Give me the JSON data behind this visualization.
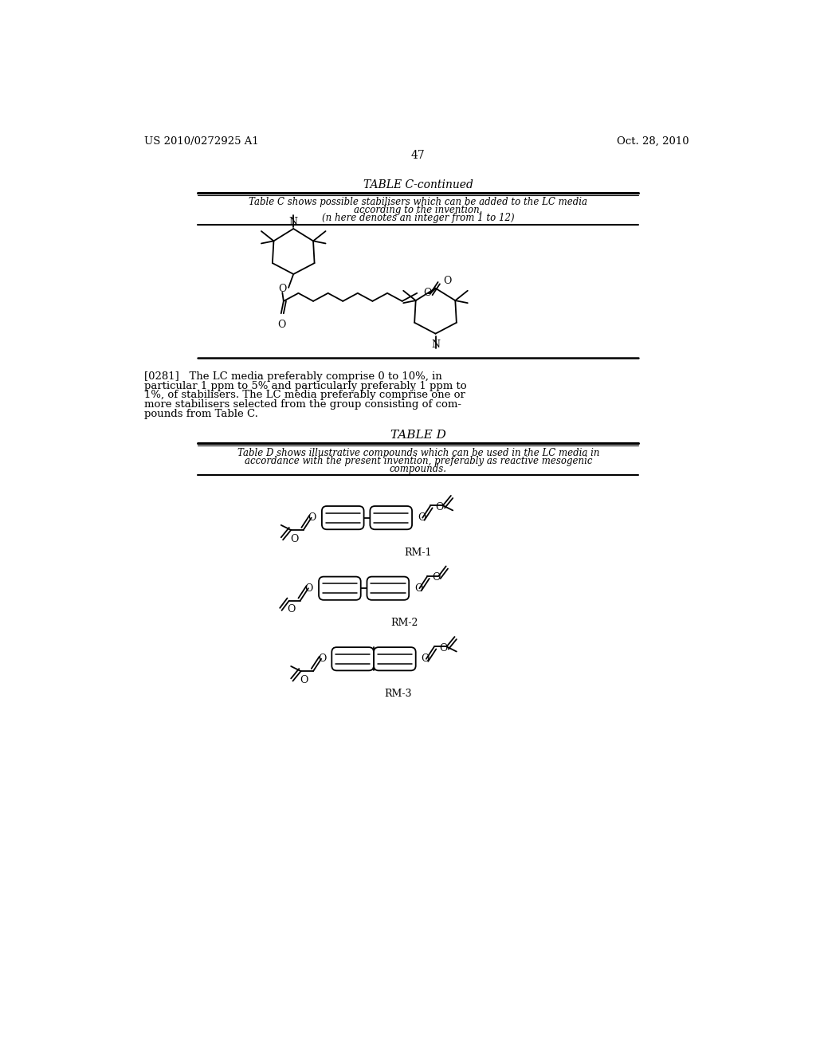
{
  "page_number": "47",
  "patent_number": "US 2010/0272925 A1",
  "patent_date": "Oct. 28, 2010",
  "bg_color": "#ffffff",
  "text_color": "#000000",
  "table_c_title": "TABLE C-continued",
  "table_c_cap1": "Table C shows possible stabilisers which can be added to the LC media",
  "table_c_cap2": "according to the invention.",
  "table_c_cap3": "(n here denotes an integer from 1 to 12)",
  "para_lines": [
    "[0281]   The LC media preferably comprise 0 to 10%, in",
    "particular 1 ppm to 5% and particularly preferably 1 ppm to",
    "1%, of stabilisers. The LC media preferably comprise one or",
    "more stabilisers selected from the group consisting of com-",
    "pounds from Table C."
  ],
  "table_d_title": "TABLE D",
  "table_d_cap1": "Table D shows illustrative compounds which can be used in the LC media in",
  "table_d_cap2": "accordance with the present invention, preferably as reactive mesogenic",
  "table_d_cap3": "compounds.",
  "rm1_label": "RM-1",
  "rm2_label": "RM-2",
  "rm3_label": "RM-3"
}
